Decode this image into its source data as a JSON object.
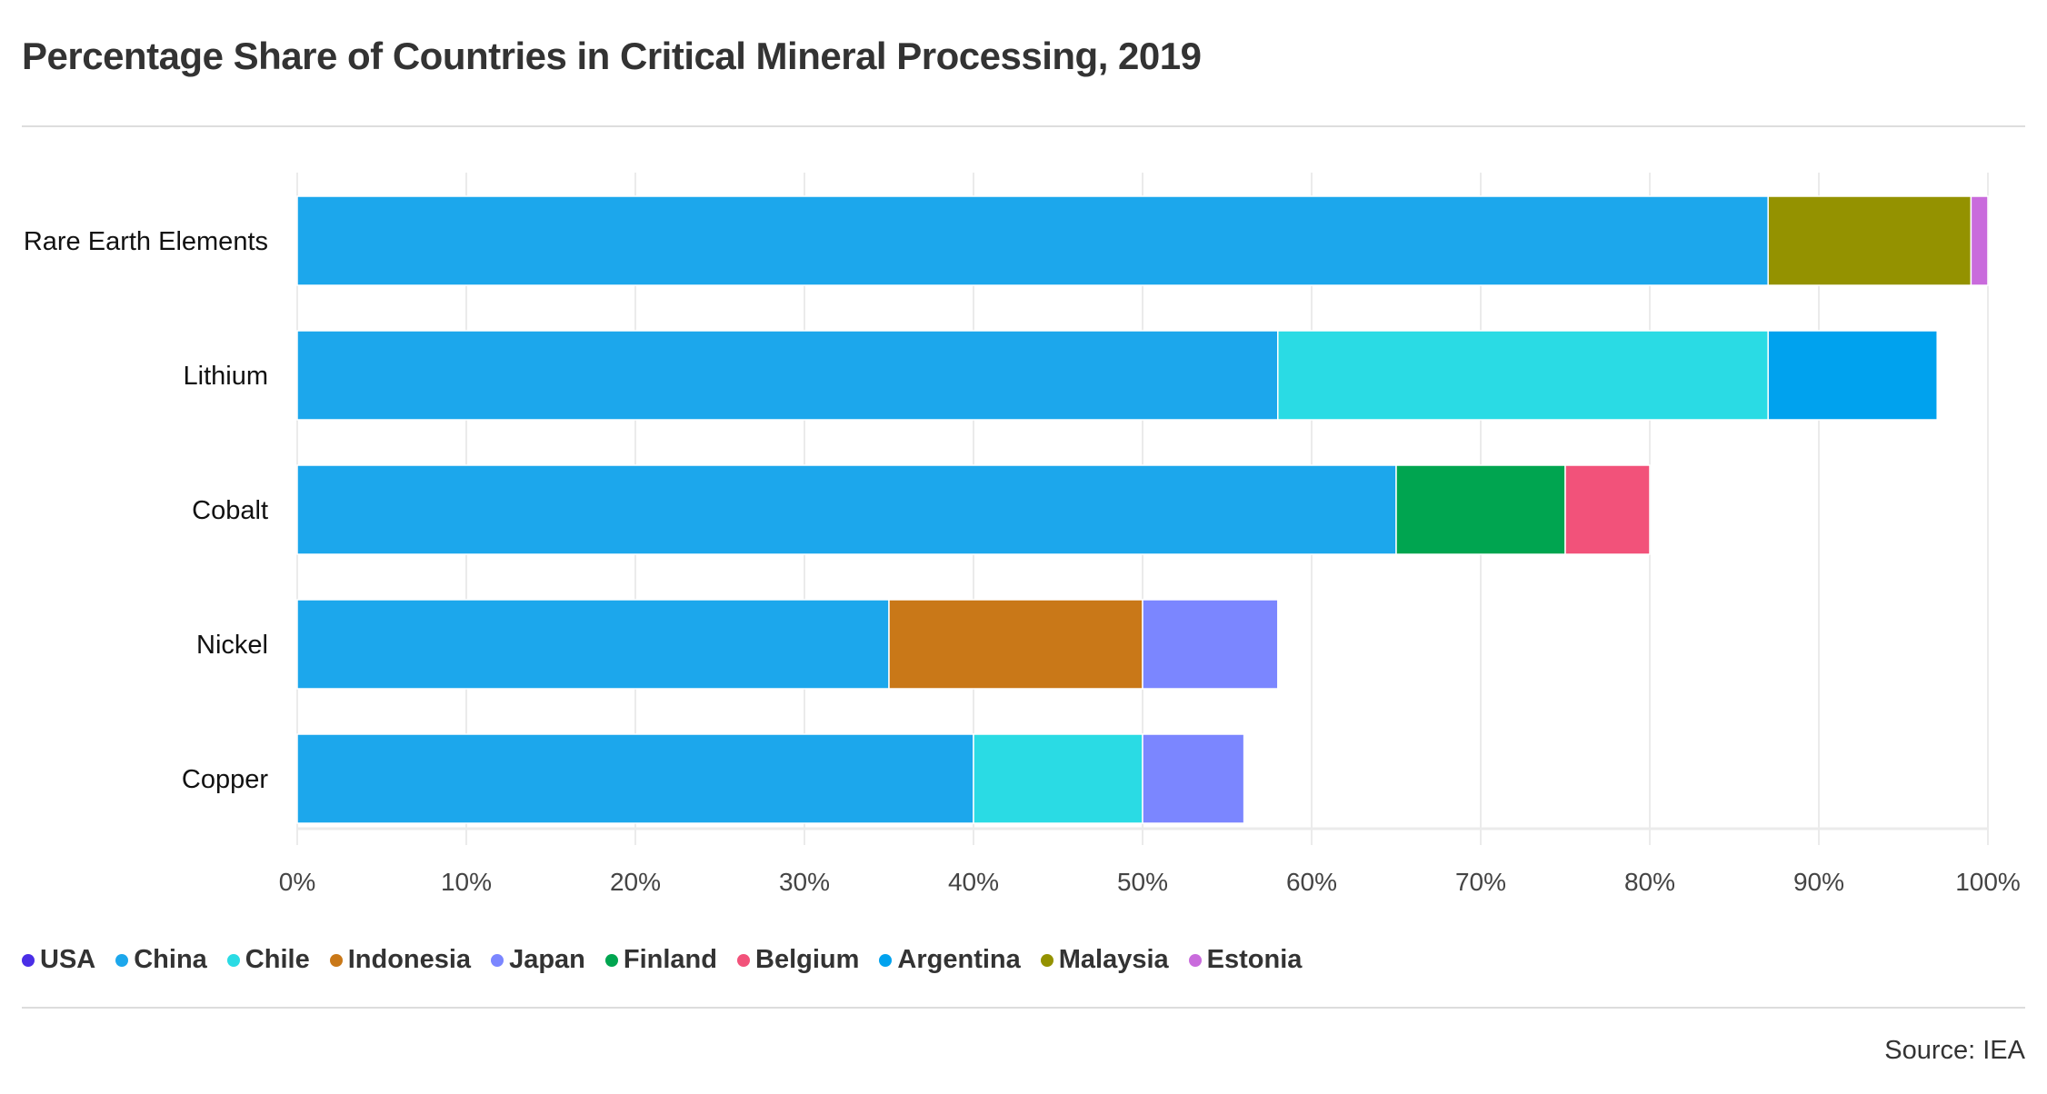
{
  "chart_data": {
    "type": "bar",
    "orientation": "horizontal",
    "stacked": true,
    "title": "Percentage Share of Countries in Critical Mineral Processing, 2019",
    "xlabel": "",
    "ylabel": "",
    "xlim": [
      0,
      100
    ],
    "x_ticks": [
      "0%",
      "10%",
      "20%",
      "30%",
      "40%",
      "50%",
      "60%",
      "70%",
      "80%",
      "90%",
      "100%"
    ],
    "grid": true,
    "legend_position": "bottom-left",
    "categories": [
      "Rare Earth Elements",
      "Lithium",
      "Cobalt",
      "Nickel",
      "Copper"
    ],
    "series": [
      {
        "name": "USA",
        "color": "#4a2ee6",
        "values": [
          0,
          0,
          0,
          0,
          0
        ]
      },
      {
        "name": "China",
        "color": "#1ca7ec",
        "values": [
          87,
          58,
          65,
          35,
          40
        ]
      },
      {
        "name": "Chile",
        "color": "#2adbe4",
        "values": [
          0,
          29,
          0,
          0,
          10
        ]
      },
      {
        "name": "Indonesia",
        "color": "#c97818",
        "values": [
          0,
          0,
          0,
          15,
          0
        ]
      },
      {
        "name": "Japan",
        "color": "#7b86ff",
        "values": [
          0,
          0,
          0,
          8,
          6
        ]
      },
      {
        "name": "Finland",
        "color": "#00a550",
        "values": [
          0,
          0,
          10,
          0,
          0
        ]
      },
      {
        "name": "Belgium",
        "color": "#f2527a",
        "values": [
          0,
          0,
          5,
          0,
          0
        ]
      },
      {
        "name": "Argentina",
        "color": "#00a2ee",
        "values": [
          0,
          10,
          0,
          0,
          0
        ]
      },
      {
        "name": "Malaysia",
        "color": "#949200",
        "values": [
          12,
          0,
          0,
          0,
          0
        ]
      },
      {
        "name": "Estonia",
        "color": "#c96bdc",
        "values": [
          1,
          0,
          0,
          0,
          0
        ]
      }
    ]
  },
  "source": "Source: IEA"
}
